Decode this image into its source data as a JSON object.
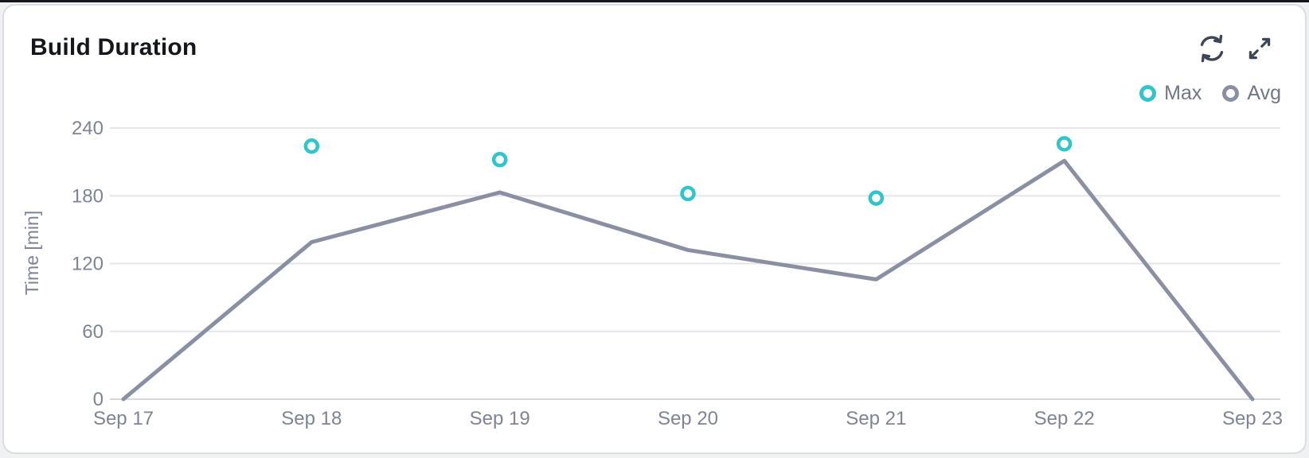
{
  "card": {
    "title": "Build Duration"
  },
  "toolbar": {
    "icons": [
      {
        "name": "refresh-icon",
        "glyph": "circular-arrows"
      },
      {
        "name": "expand-icon",
        "glyph": "diagonal-arrows"
      }
    ]
  },
  "legend": {
    "items": [
      {
        "label": "Max",
        "color": "#2fc5cb"
      },
      {
        "label": "Avg",
        "color": "#8a90a2"
      }
    ]
  },
  "colors": {
    "accent_teal": "#2fc5cb",
    "line_gray": "#8a90a2",
    "grid": "#e4e5ea",
    "axis_baseline": "#d7d8dd",
    "tick_text": "#7d8493",
    "title_text": "#16171c",
    "icon": "#3e4656",
    "card_border": "#dcdde2",
    "card_bg": "#ffffff"
  },
  "chart_data": {
    "type": "line",
    "title": "Build Duration",
    "xlabel": "",
    "ylabel": "Time [min]",
    "categories": [
      "Sep 17",
      "Sep 18",
      "Sep 19",
      "Sep 20",
      "Sep 21",
      "Sep 22",
      "Sep 23"
    ],
    "series": [
      {
        "name": "Max",
        "type": "scatter",
        "color": "#2fc5cb",
        "values": [
          null,
          224,
          212,
          182,
          178,
          226,
          null
        ]
      },
      {
        "name": "Avg",
        "type": "line",
        "color": "#8a90a2",
        "values": [
          0,
          139,
          183,
          132,
          106,
          211,
          0
        ]
      }
    ],
    "ylim": [
      0,
      240
    ],
    "yticks": [
      0,
      60,
      120,
      180,
      240
    ],
    "grid": true,
    "legend_position": "top-right"
  }
}
